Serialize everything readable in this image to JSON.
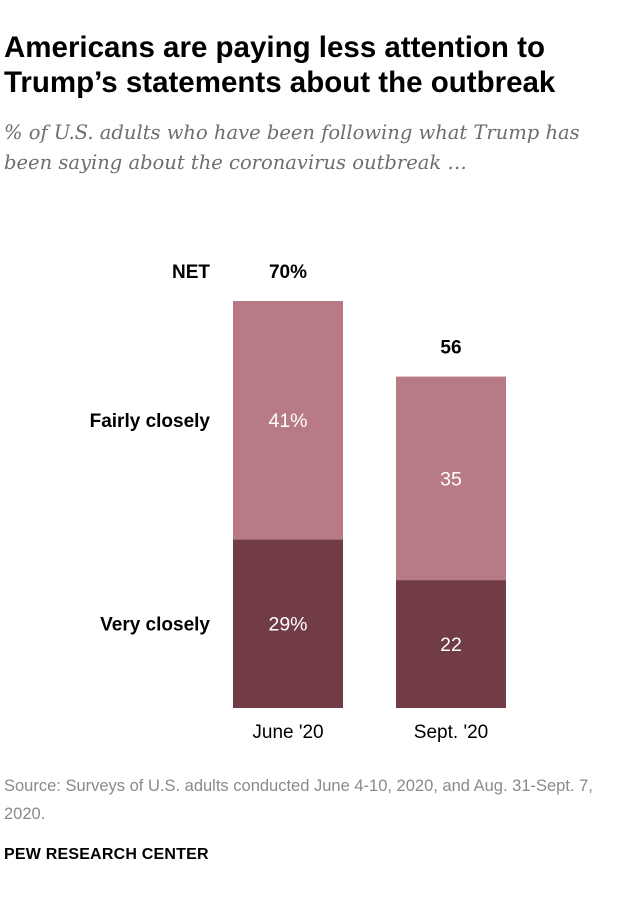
{
  "title": "Americans are paying less attention to Trump’s statements about the outbreak",
  "subtitle": "% of U.S. adults who have been following what Trump has been saying about the coronavirus outbreak …",
  "source": "Source: Surveys of U.S. adults conducted June 4-10, 2020, and Aug. 31-Sept. 7, 2020.",
  "brand": "PEW RESEARCH CENTER",
  "colors": {
    "very_closely": "#723c47",
    "fairly_closely": "#b87a85"
  },
  "chart_data": {
    "type": "bar",
    "stacked": true,
    "title": "Americans are paying less attention to Trump’s statements about the outbreak",
    "xlabel": "",
    "ylabel": "",
    "categories": [
      "June '20",
      "Sept. '20"
    ],
    "series": [
      {
        "name": "Very closely",
        "values": [
          29,
          22
        ],
        "labels": [
          "29%",
          "22"
        ]
      },
      {
        "name": "Fairly closely",
        "values": [
          41,
          35
        ],
        "labels": [
          "41%",
          "35"
        ]
      }
    ],
    "net_label": "NET",
    "net_values": [
      70,
      56
    ],
    "net_labels": [
      "70%",
      "56"
    ],
    "ylim": [
      0,
      70
    ],
    "grid": false
  }
}
